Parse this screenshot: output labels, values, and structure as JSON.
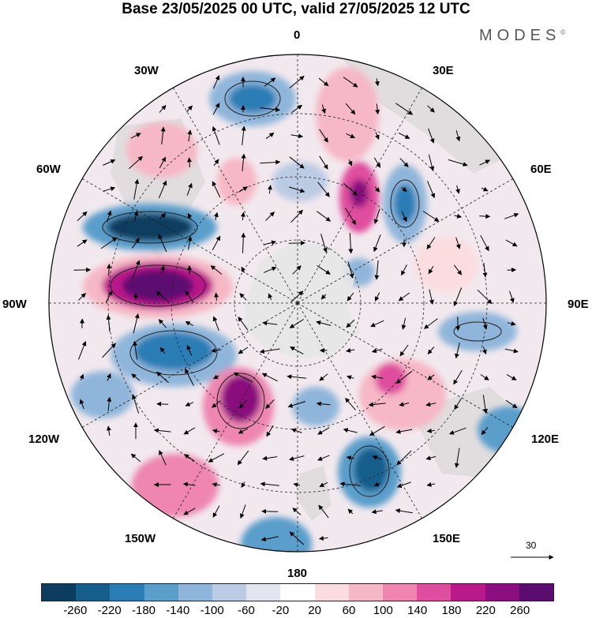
{
  "title": "Base 23/05/2025 00 UTC, valid 27/05/2025 12 UTC",
  "brand": "MODES",
  "brand_mark": "©",
  "longitude_labels": {
    "lon_0": "0",
    "lon_30e": "30E",
    "lon_60e": "60E",
    "lon_90e": "90E",
    "lon_120e": "120E",
    "lon_150e": "150E",
    "lon_180": "180",
    "lon_150w": "150W",
    "lon_120w": "120W",
    "lon_90w": "90W",
    "lon_60w": "60W",
    "lon_30w": "30W"
  },
  "reference_vector": {
    "label": "30"
  },
  "colorbar": {
    "colors": [
      "#0d3d5e",
      "#165f8d",
      "#2a7db5",
      "#5a9ecb",
      "#8fb6da",
      "#bccbe4",
      "#e3e5f1",
      "#ffffff",
      "#fbdde0",
      "#f6b7c6",
      "#ee86b0",
      "#df4d9e",
      "#b9198a",
      "#8a0e7e",
      "#5b0d6f"
    ],
    "tick_labels": [
      "-260",
      "-220",
      "-180",
      "-140",
      "-100",
      "-60",
      "-20",
      "20",
      "60",
      "100",
      "140",
      "180",
      "220",
      "260"
    ]
  },
  "colors": {
    "land": "#d0d0d0",
    "antarctica": "#e6e6e6",
    "grid": "#222222"
  }
}
